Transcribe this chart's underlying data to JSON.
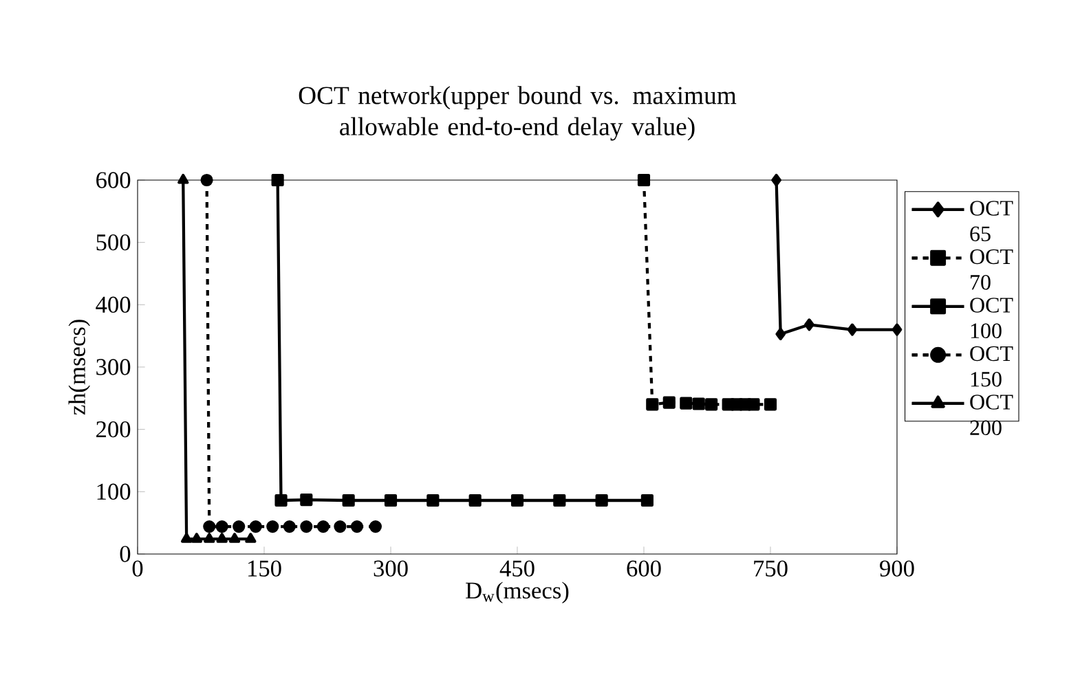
{
  "chart_data": {
    "type": "line",
    "title": "OCT network(upper bound vs. maximum allowable end-to-end delay value)",
    "xlabel": "D$_{w}$(msecs)",
    "ylabel": "zh(msecs)",
    "xlim": [
      0,
      900
    ],
    "xticks": [
      0,
      150,
      300,
      450,
      600,
      750,
      900
    ],
    "ylim": [
      0,
      600
    ],
    "yticks": [
      0,
      100,
      200,
      300,
      400,
      500,
      600
    ],
    "grid": false,
    "legend": "right",
    "series": [
      {
        "name": "OCT 65",
        "color": "#000000",
        "marker": "diamond",
        "line_style": "solid",
        "x": [
          757,
          762,
          796,
          847,
          900
        ],
        "values": [
          600,
          353,
          368,
          360,
          360
        ]
      },
      {
        "name": "OCT 70",
        "color": "#000000",
        "marker": "square",
        "line_style": "dashed",
        "x": [
          600,
          610,
          630,
          650,
          665,
          680,
          700,
          710,
          720,
          730,
          750
        ],
        "values": [
          600,
          240,
          243,
          242,
          241,
          240,
          240,
          240,
          240,
          240,
          240
        ]
      },
      {
        "name": "OCT 100",
        "color": "#000000",
        "marker": "square",
        "line_style": "solid",
        "x": [
          166,
          170,
          200,
          250,
          300,
          350,
          400,
          450,
          500,
          550,
          604
        ],
        "values": [
          600,
          86,
          87,
          86,
          86,
          86,
          86,
          86,
          86,
          86,
          86
        ]
      },
      {
        "name": "OCT 150",
        "color": "#000000",
        "marker": "circle",
        "line_style": "dashed",
        "x": [
          82,
          85,
          100,
          120,
          140,
          160,
          180,
          200,
          220,
          240,
          260,
          282
        ],
        "values": [
          600,
          44,
          44,
          44,
          44,
          44,
          44,
          44,
          44,
          44,
          44,
          44
        ]
      },
      {
        "name": "OCT 200",
        "color": "#000000",
        "marker": "triangle",
        "line_style": "solid",
        "x": [
          54,
          58,
          70,
          85,
          100,
          115,
          134
        ],
        "values": [
          600,
          24,
          24,
          24,
          24,
          24,
          24
        ]
      }
    ]
  }
}
